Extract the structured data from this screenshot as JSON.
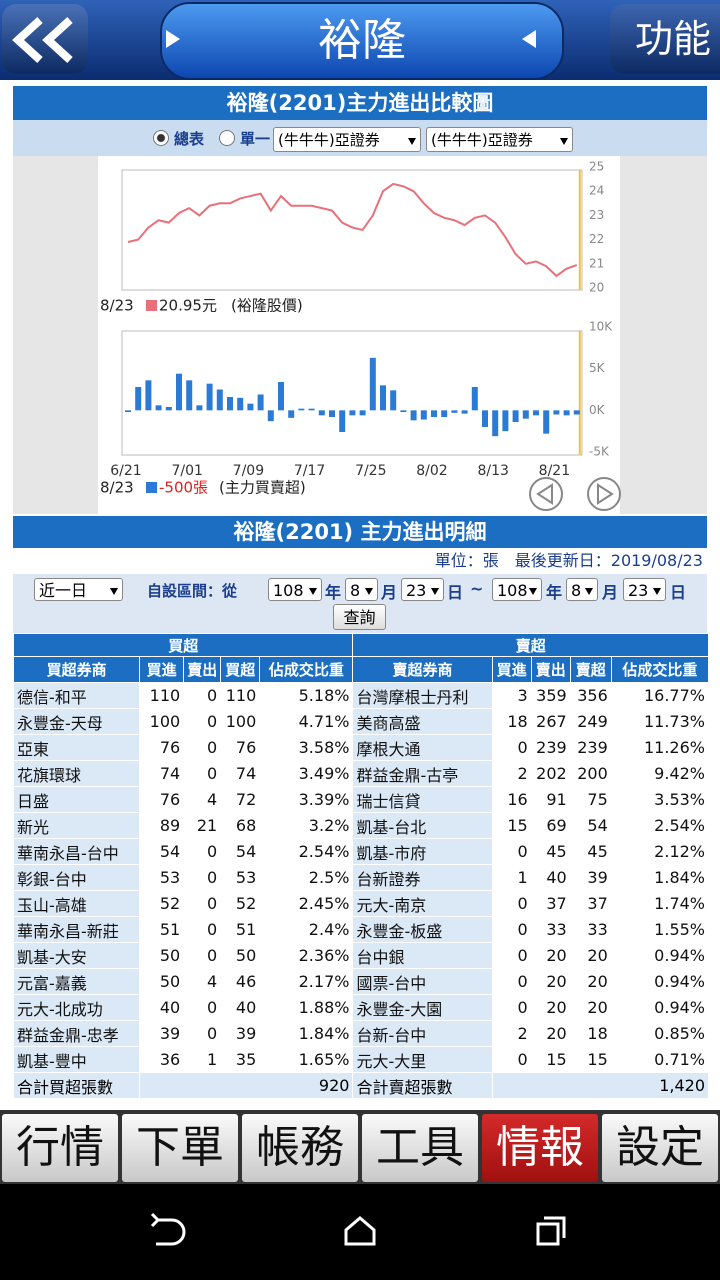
{
  "header": {
    "title": "裕隆",
    "menu": "功能"
  },
  "chart_panel": {
    "title": "裕隆(2201)主力進出比較圖",
    "radio_all": "總表",
    "radio_single": "單一",
    "select_1": "(牛牛牛)亞證券",
    "select_2": "(牛牛牛)亞證券"
  },
  "chart_data": [
    {
      "type": "line",
      "color": "#e8707a",
      "ylim": [
        20,
        25
      ],
      "yticks": [
        20,
        21,
        22,
        23,
        24,
        25
      ],
      "grid": false,
      "values": [
        21.9,
        22.0,
        22.5,
        22.8,
        22.7,
        23.1,
        23.3,
        23.0,
        23.4,
        23.5,
        23.5,
        23.7,
        23.8,
        23.9,
        23.2,
        23.8,
        23.4,
        23.4,
        23.4,
        23.3,
        23.2,
        22.7,
        22.5,
        22.4,
        23.0,
        24.0,
        24.3,
        24.2,
        24.0,
        23.5,
        23.1,
        22.9,
        22.8,
        22.6,
        22.9,
        23.0,
        22.7,
        22.1,
        21.4,
        21.0,
        21.1,
        20.9,
        20.5,
        20.8,
        20.95
      ],
      "annotation": {
        "date": "8/23",
        "value": "20.95元",
        "name": "(裕隆股價)"
      }
    },
    {
      "type": "bar",
      "color": "#2b7bd6",
      "ylim": [
        -5000,
        10000
      ],
      "yticks": [
        {
          "value": -5000,
          "label": "-5K"
        },
        {
          "value": 0,
          "label": "0K"
        },
        {
          "value": 5000,
          "label": "5K"
        },
        {
          "value": 10000,
          "label": "10K"
        }
      ],
      "grid": false,
      "categories": [
        "6/21",
        null,
        null,
        null,
        null,
        null,
        "7/01",
        null,
        null,
        null,
        null,
        null,
        "7/09",
        null,
        null,
        null,
        null,
        null,
        "7/17",
        null,
        null,
        null,
        null,
        null,
        "7/25",
        null,
        null,
        null,
        null,
        null,
        "8/02",
        null,
        null,
        null,
        null,
        null,
        "8/13",
        null,
        null,
        null,
        null,
        null,
        "8/21",
        null,
        null
      ],
      "values": [
        -200,
        2800,
        3600,
        600,
        400,
        4400,
        3600,
        600,
        3200,
        2500,
        1600,
        1500,
        800,
        1900,
        -1300,
        3400,
        -900,
        200,
        200,
        -600,
        -800,
        -2600,
        -600,
        -600,
        6300,
        3000,
        2400,
        -200,
        -1200,
        -1100,
        -800,
        -800,
        -300,
        -400,
        2800,
        -2000,
        -3100,
        -2500,
        -1400,
        -1000,
        -600,
        -2800,
        -500,
        -600,
        -500
      ],
      "annotation": {
        "date": "8/23",
        "value": "-500張",
        "name": "(主力買賣超)"
      }
    }
  ],
  "detail": {
    "title": "裕隆(2201) 主力進出明細",
    "meta": "單位：張　最後更新日：2019/08/23",
    "period": "近一日",
    "range_label": "自設區間：從",
    "date_parts": [
      "108",
      "年",
      "8",
      "月",
      "23",
      "日",
      "~",
      "108",
      "年",
      "8",
      "月",
      "23",
      "日"
    ],
    "query": "查詢"
  },
  "table": {
    "groups": [
      "買超",
      "賣超"
    ],
    "columns": [
      "買超券商",
      "買進",
      "賣出",
      "買超",
      "佔成交比重",
      "賣超券商",
      "買進",
      "賣出",
      "賣超",
      "佔成交比重"
    ],
    "rows": [
      [
        "德信-和平",
        110,
        0,
        110,
        "5.18%",
        "台灣摩根士丹利",
        3,
        359,
        356,
        "16.77%"
      ],
      [
        "永豐金-天母",
        100,
        0,
        100,
        "4.71%",
        "美商高盛",
        18,
        267,
        249,
        "11.73%"
      ],
      [
        "亞東",
        76,
        0,
        76,
        "3.58%",
        "摩根大通",
        0,
        239,
        239,
        "11.26%"
      ],
      [
        "花旗環球",
        74,
        0,
        74,
        "3.49%",
        "群益金鼎-古亭",
        2,
        202,
        200,
        "9.42%"
      ],
      [
        "日盛",
        76,
        4,
        72,
        "3.39%",
        "瑞士信貸",
        16,
        91,
        75,
        "3.53%"
      ],
      [
        "新光",
        89,
        21,
        68,
        "3.2%",
        "凱基-台北",
        15,
        69,
        54,
        "2.54%"
      ],
      [
        "華南永昌-台中",
        54,
        0,
        54,
        "2.54%",
        "凱基-市府",
        0,
        45,
        45,
        "2.12%"
      ],
      [
        "彰銀-台中",
        53,
        0,
        53,
        "2.5%",
        "台新證券",
        1,
        40,
        39,
        "1.84%"
      ],
      [
        "玉山-高雄",
        52,
        0,
        52,
        "2.45%",
        "元大-南京",
        0,
        37,
        37,
        "1.74%"
      ],
      [
        "華南永昌-新莊",
        51,
        0,
        51,
        "2.4%",
        "永豐金-板盛",
        0,
        33,
        33,
        "1.55%"
      ],
      [
        "凱基-大安",
        50,
        0,
        50,
        "2.36%",
        "台中銀",
        0,
        20,
        20,
        "0.94%"
      ],
      [
        "元富-嘉義",
        50,
        4,
        46,
        "2.17%",
        "國票-台中",
        0,
        20,
        20,
        "0.94%"
      ],
      [
        "元大-北成功",
        40,
        0,
        40,
        "1.88%",
        "永豐金-大園",
        0,
        20,
        20,
        "0.94%"
      ],
      [
        "群益金鼎-忠孝",
        39,
        0,
        39,
        "1.84%",
        "台新-台中",
        2,
        20,
        18,
        "0.85%"
      ],
      [
        "凱基-豐中",
        36,
        1,
        35,
        "1.65%",
        "元大-大里",
        0,
        15,
        15,
        "0.71%"
      ]
    ],
    "totals": [
      "合計買超張數",
      920,
      "合計賣超張數",
      "1,420"
    ]
  },
  "tabs": [
    "行情",
    "下單",
    "帳務",
    "工具",
    "情報",
    "設定"
  ]
}
